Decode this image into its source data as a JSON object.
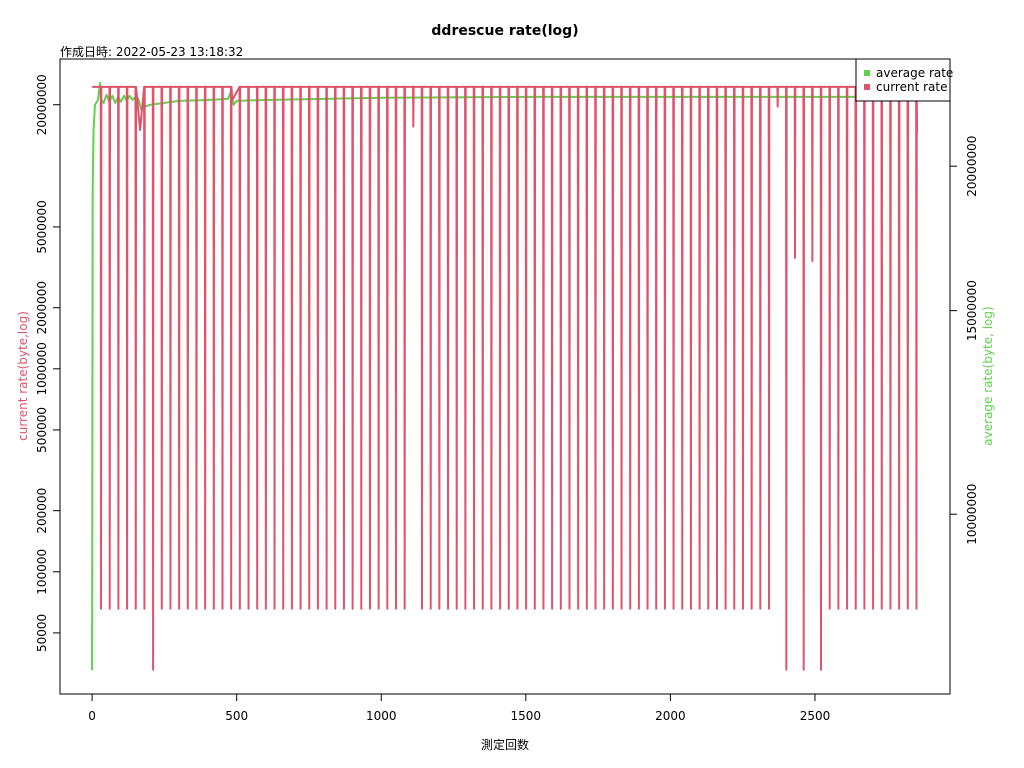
{
  "chart_data": {
    "type": "line",
    "title": "ddrescue rate(log)",
    "subtitle": "作成日時: 2022-05-23 13:18:32",
    "x_label": "測定回数",
    "y_label": "current rate(byte,log)",
    "y2_label": "average rate(byte, log)",
    "xlim": [
      -111,
      2967
    ],
    "xticks": [
      0,
      500,
      1000,
      1500,
      2000,
      2500
    ],
    "ylim": [
      25000,
      33600000
    ],
    "ylog": true,
    "yticks": [
      50000,
      100000,
      200000,
      500000,
      1000000,
      2000000,
      5000000,
      20000000
    ],
    "y2lim": [
      6990000,
      24760000
    ],
    "y2log": true,
    "y2ticks": [
      10000000,
      15000000,
      20000000
    ],
    "legend": "top-right",
    "series": [
      {
        "name": "average rate",
        "color": "#61D04F",
        "axis": "y2",
        "x": [
          0,
          2,
          5,
          10,
          20,
          28,
          32,
          40,
          50,
          60,
          70,
          80,
          90,
          100,
          110,
          120,
          130,
          140,
          150,
          160,
          170,
          180,
          200,
          250,
          300,
          400,
          470,
          480,
          490,
          500,
          600,
          800,
          1000,
          1500,
          2000,
          2860
        ],
        "values": [
          7330000,
          18960000,
          21500000,
          22600000,
          22820000,
          23620000,
          22820000,
          22690000,
          23060000,
          22740000,
          23010000,
          22690000,
          22960000,
          22740000,
          23010000,
          22780000,
          23010000,
          22820000,
          22960000,
          22870000,
          22380000,
          22510000,
          22600000,
          22690000,
          22780000,
          22820000,
          22870000,
          23200000,
          22600000,
          22780000,
          22820000,
          22870000,
          22920000,
          22960000,
          22960000,
          22960000
        ]
      },
      {
        "name": "current rate",
        "color": "#DF536B",
        "x": [
          0,
          30,
          31,
          32,
          60,
          61,
          62,
          90,
          91,
          92,
          120,
          121,
          122,
          150,
          151,
          152,
          166,
          180,
          181,
          182,
          210,
          211,
          212,
          240,
          241,
          242,
          270,
          271,
          272,
          300,
          301,
          302,
          330,
          331,
          332,
          360,
          361,
          362,
          390,
          391,
          392,
          420,
          421,
          422,
          450,
          451,
          452,
          480,
          481,
          482,
          485,
          510,
          511,
          512,
          540,
          541,
          542,
          570,
          571,
          572,
          600,
          601,
          602,
          630,
          631,
          632,
          660,
          661,
          662,
          690,
          691,
          692,
          720,
          721,
          722,
          750,
          751,
          752,
          780,
          781,
          782,
          810,
          811,
          812,
          840,
          841,
          842,
          870,
          871,
          872,
          900,
          901,
          902,
          930,
          931,
          932,
          960,
          961,
          962,
          990,
          991,
          992,
          1020,
          1021,
          1022,
          1050,
          1051,
          1052,
          1080,
          1081,
          1082,
          1110,
          1111,
          1112,
          1140,
          1141,
          1142,
          1170,
          1171,
          1172,
          1200,
          1201,
          1202,
          1230,
          1231,
          1232,
          1260,
          1261,
          1262,
          1290,
          1291,
          1292,
          1320,
          1321,
          1322,
          1350,
          1351,
          1352,
          1380,
          1381,
          1382,
          1410,
          1411,
          1412,
          1440,
          1441,
          1442,
          1470,
          1471,
          1472,
          1500,
          1501,
          1502,
          1530,
          1531,
          1532,
          1560,
          1561,
          1562,
          1590,
          1591,
          1592,
          1620,
          1621,
          1622,
          1650,
          1651,
          1652,
          1680,
          1681,
          1682,
          1710,
          1711,
          1712,
          1740,
          1741,
          1742,
          1770,
          1771,
          1772,
          1800,
          1801,
          1802,
          1830,
          1831,
          1832,
          1860,
          1861,
          1862,
          1890,
          1891,
          1892,
          1920,
          1921,
          1922,
          1950,
          1951,
          1952,
          1980,
          1981,
          1982,
          2010,
          2011,
          2012,
          2040,
          2041,
          2042,
          2070,
          2071,
          2072,
          2100,
          2101,
          2102,
          2130,
          2131,
          2132,
          2160,
          2161,
          2162,
          2190,
          2191,
          2192,
          2220,
          2221,
          2222,
          2250,
          2251,
          2252,
          2280,
          2281,
          2282,
          2310,
          2311,
          2312,
          2340,
          2341,
          2342,
          2370,
          2371,
          2372,
          2400,
          2401,
          2402,
          2430,
          2431,
          2432,
          2460,
          2461,
          2462,
          2490,
          2491,
          2492,
          2520,
          2521,
          2522,
          2550,
          2551,
          2552,
          2580,
          2581,
          2582,
          2610,
          2611,
          2612,
          2640,
          2641,
          2642,
          2670,
          2671,
          2672,
          2700,
          2701,
          2702,
          2730,
          2731,
          2732,
          2760,
          2761,
          2762,
          2790,
          2791,
          2792,
          2820,
          2821,
          2822,
          2850,
          2851,
          2852,
          2853
        ],
        "values": [
          24500000,
          24500000,
          65800,
          24500000,
          24500000,
          65800,
          24500000,
          24500000,
          65800,
          24500000,
          24500000,
          65800,
          24500000,
          24500000,
          65800,
          24500000,
          15000000,
          24500000,
          65800,
          24500000,
          24500000,
          32900,
          24500000,
          24500000,
          65800,
          24500000,
          24500000,
          65800,
          24500000,
          24500000,
          65800,
          24500000,
          24500000,
          65800,
          24500000,
          24500000,
          65800,
          24500000,
          24500000,
          65800,
          24500000,
          24500000,
          65800,
          24500000,
          24500000,
          65800,
          24500000,
          24500000,
          65800,
          24500000,
          21100000,
          24500000,
          65800,
          24500000,
          24500000,
          65800,
          24500000,
          24500000,
          65800,
          24500000,
          24500000,
          65800,
          24500000,
          24500000,
          65800,
          24500000,
          24500000,
          65800,
          24500000,
          24500000,
          65800,
          24500000,
          24500000,
          65800,
          24500000,
          24500000,
          65800,
          24500000,
          24500000,
          65800,
          24500000,
          24500000,
          65800,
          24500000,
          24500000,
          65800,
          24500000,
          24500000,
          65800,
          24500000,
          24500000,
          65800,
          24500000,
          24500000,
          65800,
          24500000,
          24500000,
          65800,
          24500000,
          24500000,
          65800,
          24500000,
          24500000,
          65800,
          24500000,
          24500000,
          65800,
          24500000,
          24500000,
          65800,
          24500000,
          24500000,
          15600000,
          24500000,
          24500000,
          65800,
          24500000,
          24500000,
          65800,
          24500000,
          24500000,
          65800,
          24500000,
          24500000,
          65800,
          24500000,
          24500000,
          65800,
          24500000,
          24500000,
          65800,
          24500000,
          24500000,
          65800,
          24500000,
          24500000,
          65800,
          24500000,
          24500000,
          65800,
          24500000,
          24500000,
          65800,
          24500000,
          24500000,
          65800,
          24500000,
          24500000,
          65800,
          24500000,
          24500000,
          65800,
          24500000,
          24500000,
          65800,
          24500000,
          24500000,
          65800,
          24500000,
          24500000,
          65800,
          24500000,
          24500000,
          65800,
          24500000,
          24500000,
          65800,
          24500000,
          24500000,
          65800,
          24500000,
          24500000,
          65800,
          24500000,
          24500000,
          65800,
          24500000,
          24500000,
          65800,
          24500000,
          24500000,
          65800,
          24500000,
          24500000,
          65800,
          24500000,
          24500000,
          65800,
          24500000,
          24500000,
          65800,
          24500000,
          24500000,
          65800,
          24500000,
          24500000,
          65800,
          24500000,
          24500000,
          65800,
          24500000,
          24500000,
          65800,
          24500000,
          24500000,
          65800,
          24500000,
          24500000,
          65800,
          24500000,
          24500000,
          65800,
          24500000,
          24500000,
          65800,
          24500000,
          24500000,
          65800,
          24500000,
          24500000,
          65800,
          24500000,
          24500000,
          65800,
          24500000,
          24500000,
          65800,
          24500000,
          24500000,
          65800,
          24500000,
          24500000,
          65800,
          24500000,
          24500000,
          65800,
          24500000,
          24500000,
          19600000,
          24500000,
          24500000,
          32900,
          24500000,
          24500000,
          3520000,
          24500000,
          24500000,
          32900,
          24500000,
          24500000,
          3400000,
          24500000,
          24500000,
          32900,
          24500000,
          24500000,
          65800,
          24500000,
          24500000,
          65800,
          24500000,
          24500000,
          65800,
          24500000,
          24500000,
          65800,
          24500000,
          24500000,
          65800,
          24500000,
          24500000,
          65800,
          24500000,
          24500000,
          65800,
          24500000,
          24500000,
          65800,
          24500000,
          24500000,
          65800,
          24500000,
          24500000,
          65800,
          24500000,
          24500000,
          65800,
          24500000,
          14500000
        ]
      }
    ]
  }
}
